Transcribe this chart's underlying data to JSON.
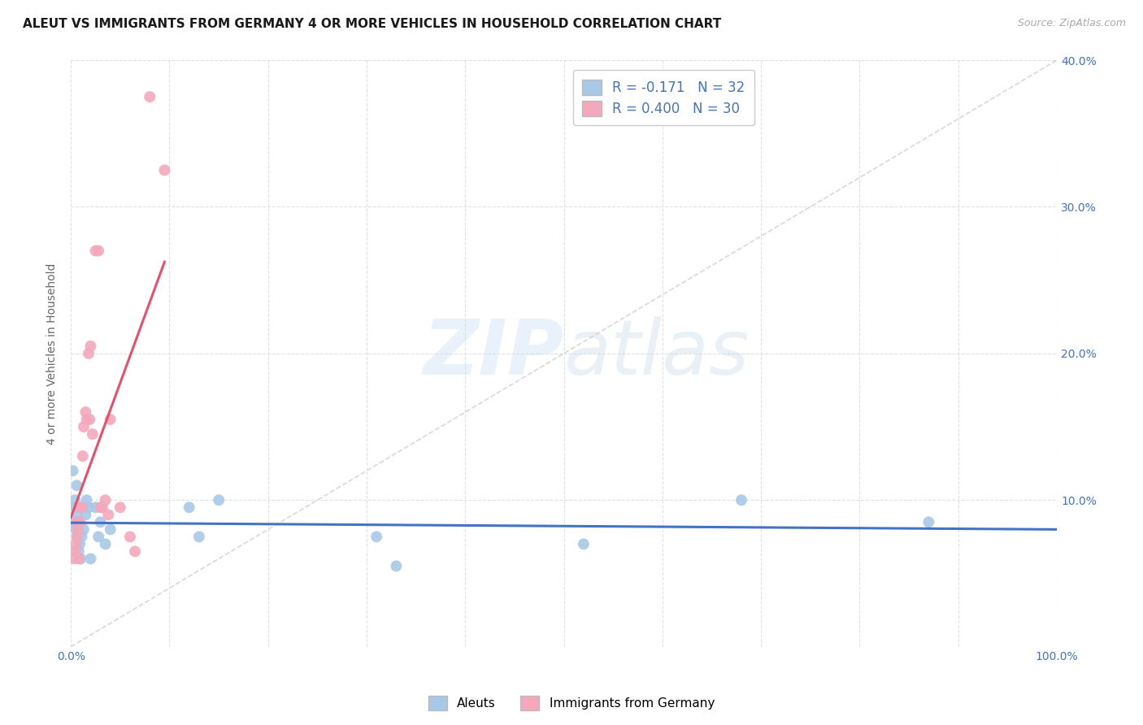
{
  "title": "ALEUT VS IMMIGRANTS FROM GERMANY 4 OR MORE VEHICLES IN HOUSEHOLD CORRELATION CHART",
  "source": "Source: ZipAtlas.com",
  "ylabel": "4 or more Vehicles in Household",
  "xlim": [
    0,
    1.0
  ],
  "ylim": [
    0,
    0.4
  ],
  "xticks": [
    0.0,
    0.1,
    0.2,
    0.3,
    0.4,
    0.5,
    0.6,
    0.7,
    0.8,
    0.9,
    1.0
  ],
  "xticklabels": [
    "0.0%",
    "",
    "",
    "",
    "",
    "",
    "",
    "",
    "",
    "",
    "100.0%"
  ],
  "yticks": [
    0.0,
    0.1,
    0.2,
    0.3,
    0.4
  ],
  "yticklabels_right": [
    "",
    "10.0%",
    "20.0%",
    "30.0%",
    "40.0%"
  ],
  "legend_labels": [
    "Aleuts",
    "Immigrants from Germany"
  ],
  "aleuts_color": "#a8c8e8",
  "germany_color": "#f4a8bc",
  "aleuts_line_color": "#4472c4",
  "germany_line_color": "#e8506a",
  "diag_line_color": "#c8c8c8",
  "watermark_zip": "ZIP",
  "watermark_atlas": "atlas",
  "R_aleuts": -0.171,
  "N_aleuts": 32,
  "R_germany": 0.4,
  "N_germany": 30,
  "tick_color": "#4472c4",
  "aleuts_x": [
    0.002,
    0.003,
    0.004,
    0.005,
    0.005,
    0.006,
    0.007,
    0.007,
    0.008,
    0.008,
    0.009,
    0.01,
    0.011,
    0.012,
    0.013,
    0.015,
    0.016,
    0.018,
    0.02,
    0.025,
    0.028,
    0.03,
    0.035,
    0.04,
    0.12,
    0.13,
    0.15,
    0.31,
    0.33,
    0.52,
    0.68,
    0.87
  ],
  "aleuts_y": [
    0.12,
    0.085,
    0.1,
    0.095,
    0.08,
    0.11,
    0.075,
    0.09,
    0.065,
    0.085,
    0.07,
    0.06,
    0.075,
    0.095,
    0.08,
    0.09,
    0.1,
    0.095,
    0.06,
    0.095,
    0.075,
    0.085,
    0.07,
    0.08,
    0.095,
    0.075,
    0.1,
    0.075,
    0.055,
    0.07,
    0.1,
    0.085
  ],
  "germany_x": [
    0.003,
    0.004,
    0.005,
    0.006,
    0.007,
    0.007,
    0.008,
    0.009,
    0.01,
    0.011,
    0.012,
    0.013,
    0.015,
    0.016,
    0.018,
    0.019,
    0.02,
    0.022,
    0.025,
    0.028,
    0.03,
    0.032,
    0.035,
    0.038,
    0.04,
    0.05,
    0.06,
    0.065,
    0.08,
    0.095
  ],
  "germany_y": [
    0.06,
    0.065,
    0.07,
    0.075,
    0.085,
    0.08,
    0.06,
    0.085,
    0.095,
    0.095,
    0.13,
    0.15,
    0.16,
    0.155,
    0.2,
    0.155,
    0.205,
    0.145,
    0.27,
    0.27,
    0.095,
    0.095,
    0.1,
    0.09,
    0.155,
    0.095,
    0.075,
    0.065,
    0.375,
    0.325
  ],
  "background_color": "#ffffff",
  "grid_color": "#e0e0e0",
  "title_fontsize": 11,
  "tick_fontsize": 10,
  "legend_fontsize": 12,
  "dot_size": 100
}
